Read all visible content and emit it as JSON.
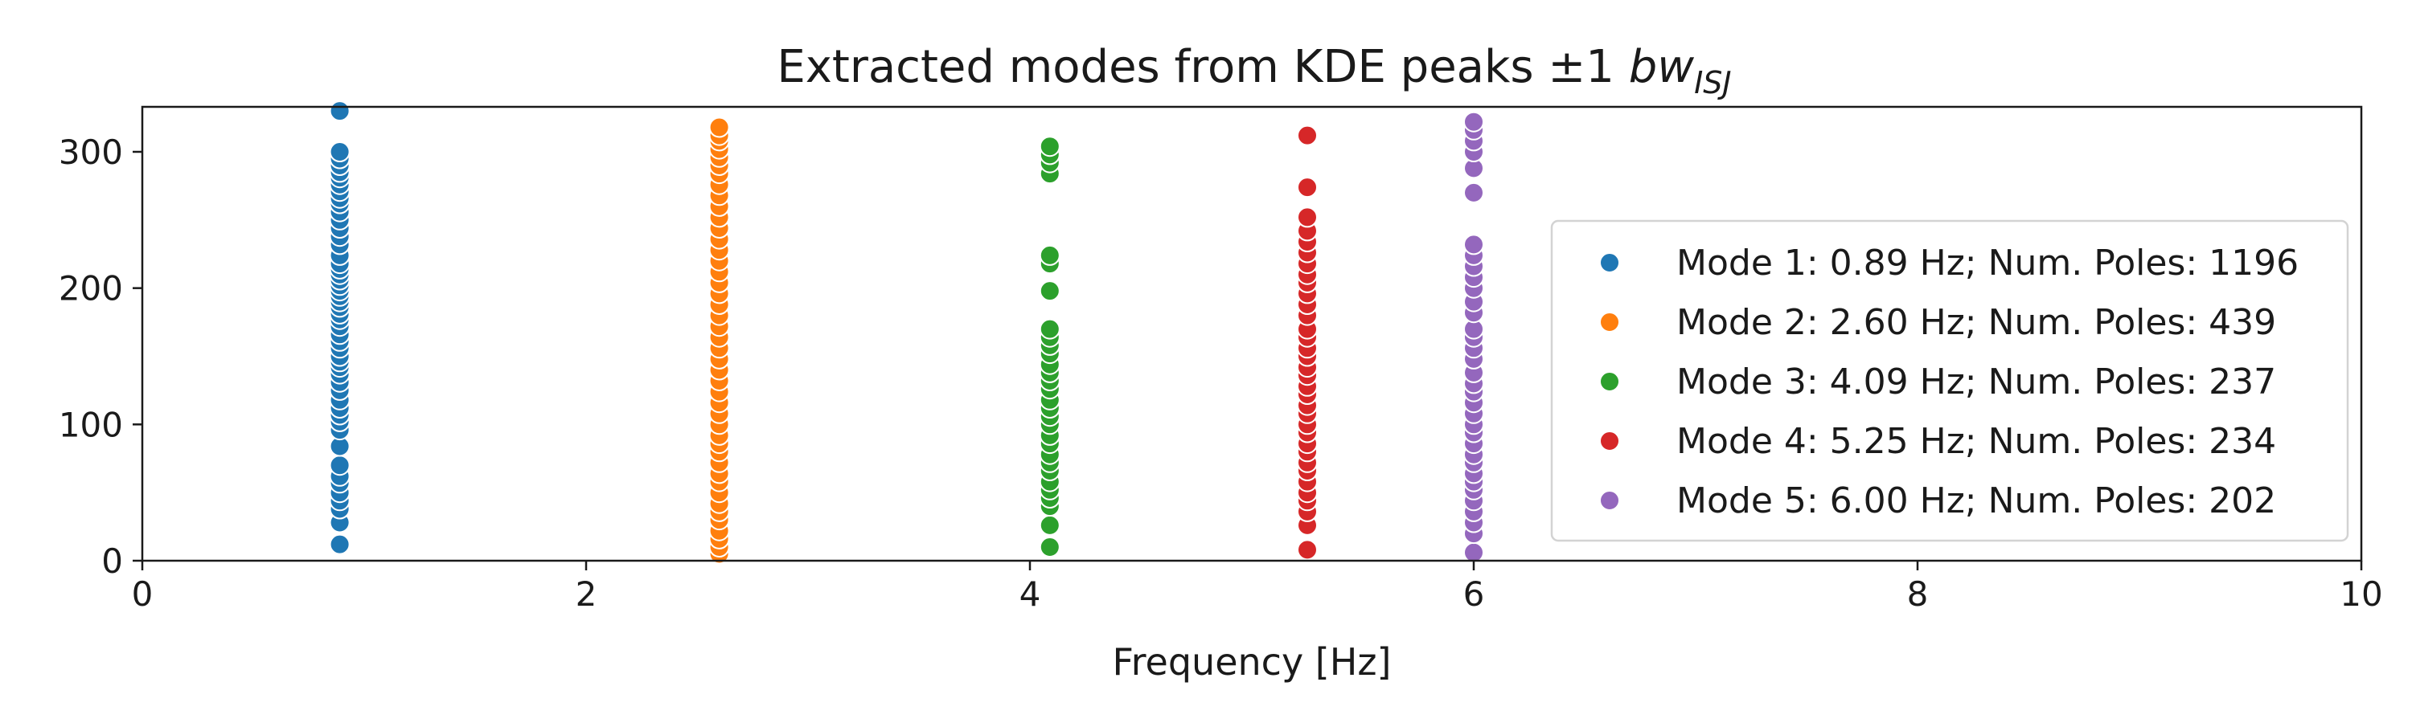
{
  "chart_data": {
    "type": "scatter",
    "title": "Extracted modes from KDE peaks ±1 ",
    "title_math": {
      "base": "bw",
      "subscript": "ISJ"
    },
    "xlabel": "Frequency [Hz]",
    "ylabel": "",
    "xlim": [
      0,
      10
    ],
    "ylim": [
      0,
      333
    ],
    "x_ticks": [
      0,
      2,
      4,
      6,
      8,
      10
    ],
    "y_ticks": [
      0,
      100,
      200,
      300
    ],
    "grid": false,
    "legend_position": "center-right",
    "marker_edge_color": "#ffffff",
    "series": [
      {
        "name": "Mode 1: 0.89 Hz; Num. Poles: 1196",
        "frequency": 0.89,
        "color": "#1f77b4",
        "y": [
          12,
          28,
          38,
          44,
          50,
          57,
          62,
          70,
          84,
          96,
          102,
          107,
          112,
          118,
          125,
          131,
          137,
          142,
          146,
          150,
          156,
          161,
          166,
          172,
          177,
          181,
          186,
          190,
          194,
          198,
          202,
          206,
          210,
          214,
          218,
          224,
          232,
          238,
          244,
          250,
          256,
          262,
          266,
          271,
          276,
          281,
          285,
          290,
          295,
          300,
          330
        ]
      },
      {
        "name": "Mode 2: 2.60 Hz; Num. Poles: 439",
        "frequency": 2.6,
        "color": "#ff7f0e",
        "y": [
          5,
          10,
          16,
          22,
          30,
          36,
          42,
          50,
          58,
          64,
          72,
          80,
          86,
          92,
          100,
          108,
          116,
          124,
          132,
          140,
          148,
          156,
          164,
          172,
          180,
          188,
          196,
          204,
          212,
          220,
          228,
          236,
          244,
          252,
          260,
          268,
          276,
          284,
          290,
          296,
          302,
          308,
          312,
          318
        ]
      },
      {
        "name": "Mode 3: 4.09 Hz; Num. Poles: 237",
        "frequency": 4.09,
        "color": "#2ca02c",
        "y": [
          10,
          26,
          40,
          46,
          52,
          58,
          66,
          72,
          78,
          86,
          92,
          100,
          106,
          112,
          118,
          126,
          132,
          138,
          144,
          152,
          158,
          164,
          170,
          198,
          218,
          224,
          284,
          292,
          298,
          304
        ]
      },
      {
        "name": "Mode 4: 5.25 Hz; Num. Poles: 234",
        "frequency": 5.25,
        "color": "#d62728",
        "y": [
          8,
          26,
          36,
          44,
          50,
          58,
          66,
          72,
          80,
          86,
          94,
          100,
          108,
          114,
          122,
          128,
          136,
          142,
          150,
          156,
          164,
          170,
          180,
          188,
          196,
          204,
          210,
          218,
          226,
          234,
          242,
          252,
          274,
          312
        ]
      },
      {
        "name": "Mode 5: 6.00 Hz; Num. Poles: 202",
        "frequency": 6.0,
        "color": "#9467bd",
        "y": [
          6,
          20,
          28,
          36,
          44,
          52,
          58,
          64,
          72,
          78,
          86,
          94,
          100,
          108,
          116,
          124,
          130,
          138,
          148,
          156,
          164,
          170,
          182,
          190,
          200,
          208,
          216,
          224,
          232,
          270,
          288,
          300,
          308,
          316,
          322
        ]
      }
    ]
  }
}
